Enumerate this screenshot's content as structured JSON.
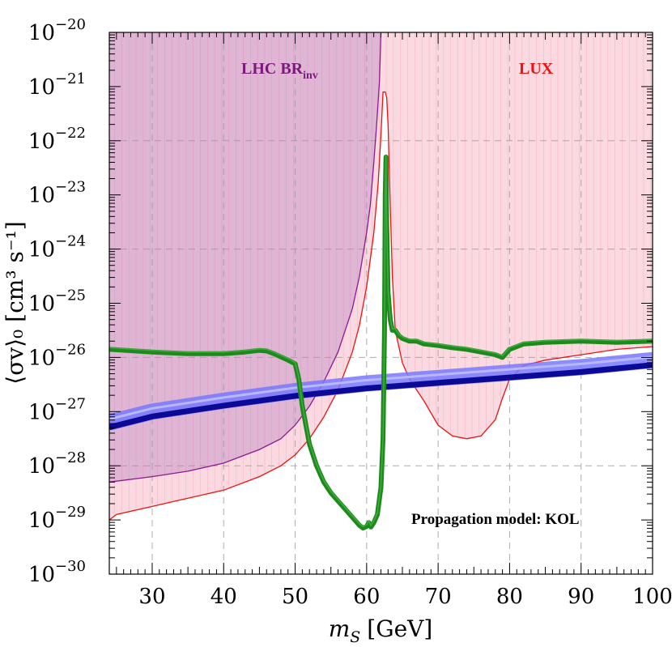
{
  "chart_data": {
    "type": "line",
    "title": "",
    "xlabel_main": "m",
    "xlabel_sub": "S",
    "xlabel_unit": "[GeV]",
    "ylabel": "⟨σv⟩₀ [cm³ s⁻¹]",
    "x_scale": "linear",
    "y_scale": "log",
    "xlim": [
      24,
      100
    ],
    "ylim": [
      1e-30,
      1e-20
    ],
    "grid": true,
    "x_ticks": [
      30,
      40,
      50,
      60,
      70,
      80,
      90,
      100
    ],
    "y_ticks": [
      -30,
      -29,
      -28,
      -27,
      -26,
      -25,
      -24,
      -23,
      -22,
      -21,
      -20
    ],
    "y_tick_base": "10",
    "annotations": {
      "lhc_main": "LHC BR",
      "lhc_sub": "inv",
      "lux": "LUX",
      "propagation": "Propagation model: KOL"
    },
    "colors": {
      "lhc_fill": "#d6a8cf",
      "lhc_line": "#8e1a8e",
      "lux_fill": "#fbd9e1",
      "lux_line": "#ee1111",
      "green": "#1e8a1e",
      "green_light": "#4ec64e",
      "blue_dark": "#0a0a96",
      "blue_light": "#7878ff"
    },
    "series": [
      {
        "id": "lhc_brinv",
        "role": "exclusion-region",
        "x": [
          24,
          30,
          35,
          40,
          45,
          48,
          50,
          52,
          54,
          56,
          58,
          59,
          60,
          60.5,
          61,
          61.4,
          61.8,
          62
        ],
        "log10y": [
          -28.3,
          -28.2,
          -28.1,
          -27.95,
          -27.7,
          -27.5,
          -27.25,
          -26.9,
          -26.45,
          -25.9,
          -25.1,
          -24.5,
          -23.7,
          -23.2,
          -22.4,
          -21.7,
          -20.9,
          -20
        ]
      },
      {
        "id": "lux",
        "role": "exclusion-region",
        "x": [
          24,
          25,
          30,
          35,
          40,
          45,
          48,
          50,
          52,
          54,
          56,
          58,
          59,
          60,
          61,
          61.6,
          62,
          62.3,
          62.6,
          62.8,
          63,
          63.3,
          63.6,
          64,
          65,
          66,
          68,
          70,
          72,
          74,
          76,
          78,
          79,
          80,
          82,
          85,
          90,
          95,
          100
        ],
        "log10y": [
          -29.0,
          -28.9,
          -28.75,
          -28.6,
          -28.45,
          -28.2,
          -28.0,
          -27.8,
          -27.5,
          -27.1,
          -26.6,
          -25.9,
          -25.4,
          -24.7,
          -23.7,
          -22.8,
          -21.9,
          -21.1,
          -21.1,
          -21.2,
          -21.7,
          -23.2,
          -24.5,
          -25.5,
          -26.1,
          -26.4,
          -26.8,
          -27.25,
          -27.45,
          -27.5,
          -27.45,
          -27.15,
          -26.75,
          -26.4,
          -26.15,
          -26.05,
          -25.95,
          -25.85,
          -25.8
        ]
      },
      {
        "id": "green_relic",
        "role": "curve",
        "x": [
          24,
          30,
          35,
          40,
          43,
          45,
          46,
          47,
          49,
          50,
          50.5,
          51,
          52,
          53,
          54,
          55,
          56,
          57,
          58,
          59,
          59.5,
          60,
          60.3,
          60.6,
          61,
          61.5,
          62,
          62.3,
          62.5,
          62.6,
          62.7,
          62.8,
          63,
          63.3,
          63.6,
          64,
          64.5,
          65,
          66,
          67,
          68,
          70,
          72,
          74,
          76,
          78,
          79,
          80,
          82,
          85,
          90,
          95,
          100
        ],
        "log10y": [
          -25.85,
          -25.9,
          -25.93,
          -25.93,
          -25.9,
          -25.87,
          -25.88,
          -25.93,
          -26.05,
          -26.12,
          -26.4,
          -26.9,
          -27.6,
          -28.0,
          -28.3,
          -28.5,
          -28.65,
          -28.8,
          -28.95,
          -29.1,
          -29.15,
          -29.12,
          -29.05,
          -29.13,
          -29.05,
          -28.9,
          -28.4,
          -27.5,
          -25.5,
          -23.0,
          -22.3,
          -23.5,
          -24.8,
          -25.3,
          -25.5,
          -25.5,
          -25.6,
          -25.65,
          -25.7,
          -25.7,
          -25.75,
          -25.78,
          -25.82,
          -25.85,
          -25.9,
          -25.95,
          -26.0,
          -25.85,
          -25.75,
          -25.72,
          -25.7,
          -25.72,
          -25.7
        ]
      },
      {
        "id": "blue_band",
        "role": "band",
        "x": [
          24,
          30,
          40,
          50,
          60,
          70,
          80,
          90,
          100
        ],
        "log10y": [
          -27.2,
          -27.0,
          -26.8,
          -26.62,
          -26.48,
          -26.38,
          -26.28,
          -26.18,
          -26.05
        ]
      }
    ]
  }
}
